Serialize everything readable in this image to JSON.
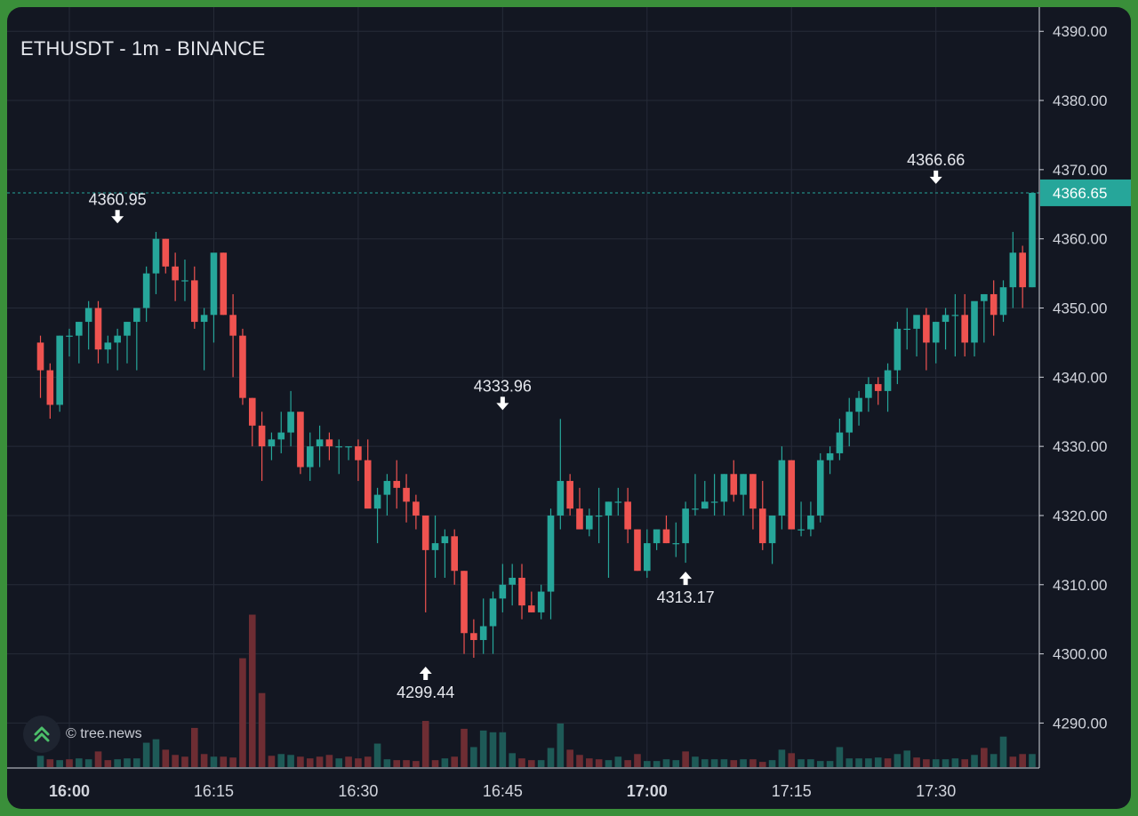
{
  "chart_data": {
    "type": "candlestick",
    "title": "ETHUSDT - 1m - BINANCE",
    "watermark": "© tree.news",
    "y_ticks": [
      "4390.00",
      "4380.00",
      "4370.00",
      "4360.00",
      "4350.00",
      "4340.00",
      "4330.00",
      "4320.00",
      "4310.00",
      "4300.00",
      "4290.00"
    ],
    "ylim": [
      4283.5,
      4393.5
    ],
    "x_ticks": [
      {
        "label": "16:00",
        "minute": 960,
        "bold": true
      },
      {
        "label": "16:15",
        "minute": 975,
        "bold": false
      },
      {
        "label": "16:30",
        "minute": 990,
        "bold": false
      },
      {
        "label": "16:45",
        "minute": 1005,
        "bold": false
      },
      {
        "label": "17:00",
        "minute": 1020,
        "bold": true
      },
      {
        "label": "17:15",
        "minute": 1035,
        "bold": false
      },
      {
        "label": "17:30",
        "minute": 1050,
        "bold": false
      }
    ],
    "current_price": "4366.65",
    "annotations": [
      {
        "label": "4360.95",
        "minute": 965,
        "price": 4360.95,
        "kind": "high"
      },
      {
        "label": "4299.44",
        "minute": 997,
        "price": 4299.44,
        "kind": "low"
      },
      {
        "label": "4333.96",
        "minute": 1005,
        "price": 4333.96,
        "kind": "high"
      },
      {
        "label": "4313.17",
        "minute": 1024,
        "price": 4313.17,
        "kind": "low"
      },
      {
        "label": "4366.66",
        "minute": 1050,
        "price": 4366.66,
        "kind": "high"
      }
    ],
    "grid": true,
    "colors": {
      "up": "#26a69a",
      "down": "#ef5350",
      "up_volume": "#1e5a57",
      "down_volume": "#6e2d33",
      "background": "#131722",
      "grid": "#262b38",
      "axis_text": "#d1d4dc",
      "price_line": "#26a69a"
    },
    "candles": [
      [
        957,
        4345,
        4346,
        4337,
        4341
      ],
      [
        958,
        4341,
        4342,
        4334,
        4336
      ],
      [
        959,
        4336,
        4346,
        4335,
        4346
      ],
      [
        960,
        4346,
        4347,
        4343,
        4346
      ],
      [
        961,
        4346,
        4348,
        4342,
        4348
      ],
      [
        962,
        4348,
        4351,
        4344,
        4350
      ],
      [
        963,
        4350,
        4351,
        4342,
        4344
      ],
      [
        964,
        4344,
        4346,
        4342,
        4345
      ],
      [
        965,
        4345,
        4347,
        4341,
        4346
      ],
      [
        966,
        4346,
        4348,
        4342,
        4348
      ],
      [
        967,
        4348,
        4350,
        4341,
        4350
      ],
      [
        968,
        4350,
        4356,
        4348,
        4355
      ],
      [
        969,
        4355,
        4361,
        4352,
        4360
      ],
      [
        970,
        4360,
        4360,
        4355,
        4356
      ],
      [
        971,
        4356,
        4358,
        4351,
        4354
      ],
      [
        972,
        4354,
        4357,
        4351,
        4354
      ],
      [
        973,
        4354,
        4356,
        4347,
        4348
      ],
      [
        974,
        4348,
        4350,
        4341,
        4349
      ],
      [
        975,
        4349,
        4357,
        4345,
        4358
      ],
      [
        976,
        4358,
        4358,
        4349,
        4349
      ],
      [
        977,
        4349,
        4352,
        4340,
        4346
      ],
      [
        978,
        4346,
        4347,
        4336,
        4337
      ],
      [
        979,
        4337,
        4337,
        4330,
        4333
      ],
      [
        980,
        4333,
        4335,
        4325,
        4330
      ],
      [
        981,
        4330,
        4332,
        4328,
        4331
      ],
      [
        982,
        4331,
        4335,
        4329,
        4332
      ],
      [
        983,
        4332,
        4338,
        4330,
        4335
      ],
      [
        984,
        4335,
        4335,
        4326,
        4327
      ],
      [
        985,
        4327,
        4332,
        4325,
        4330
      ],
      [
        986,
        4330,
        4333,
        4327,
        4331
      ],
      [
        987,
        4331,
        4332,
        4328,
        4330
      ],
      [
        988,
        4330,
        4331,
        4326,
        4330
      ],
      [
        989,
        4330,
        4330,
        4328,
        4330
      ],
      [
        990,
        4330,
        4331,
        4325,
        4328
      ],
      [
        991,
        4328,
        4331,
        4322,
        4321
      ],
      [
        992,
        4321,
        4324,
        4316,
        4323
      ],
      [
        993,
        4323,
        4326,
        4320,
        4325
      ],
      [
        994,
        4325,
        4328,
        4321,
        4324
      ],
      [
        995,
        4324,
        4326,
        4319,
        4322
      ],
      [
        996,
        4322,
        4323,
        4318,
        4320
      ],
      [
        997,
        4320,
        4320,
        4306,
        4315
      ],
      [
        998,
        4315,
        4320,
        4311,
        4316
      ],
      [
        999,
        4316,
        4318,
        4311,
        4317
      ],
      [
        1000,
        4317,
        4318,
        4310,
        4312
      ],
      [
        1001,
        4312,
        4312,
        4300,
        4303
      ],
      [
        1002,
        4303,
        4305,
        4299.44,
        4302
      ],
      [
        1003,
        4302,
        4308,
        4300,
        4304
      ],
      [
        1004,
        4304,
        4309,
        4300,
        4308
      ],
      [
        1005,
        4308,
        4313,
        4306,
        4310
      ],
      [
        1006,
        4310,
        4313,
        4307,
        4311
      ],
      [
        1007,
        4311,
        4313,
        4305,
        4307
      ],
      [
        1008,
        4307,
        4309,
        4306,
        4306
      ],
      [
        1009,
        4306,
        4310,
        4305,
        4309
      ],
      [
        1010,
        4309,
        4321,
        4305,
        4320
      ],
      [
        1011,
        4320,
        4333.96,
        4318,
        4325
      ],
      [
        1012,
        4325,
        4326,
        4320,
        4321
      ],
      [
        1013,
        4321,
        4324,
        4318,
        4318
      ],
      [
        1014,
        4318,
        4321,
        4317,
        4320
      ],
      [
        1015,
        4320,
        4324,
        4316,
        4320
      ],
      [
        1016,
        4320,
        4322,
        4311,
        4322
      ],
      [
        1017,
        4322,
        4324,
        4320,
        4322
      ],
      [
        1018,
        4322,
        4324,
        4316,
        4318
      ],
      [
        1019,
        4318,
        4318,
        4312,
        4312
      ],
      [
        1020,
        4312,
        4318,
        4311,
        4316
      ],
      [
        1021,
        4316,
        4318,
        4315,
        4318
      ],
      [
        1022,
        4318,
        4320,
        4316,
        4316
      ],
      [
        1023,
        4316,
        4319,
        4314,
        4316
      ],
      [
        1024,
        4316,
        4322,
        4313.17,
        4321
      ],
      [
        1025,
        4321,
        4326,
        4320,
        4321
      ],
      [
        1026,
        4321,
        4325,
        4321,
        4322
      ],
      [
        1027,
        4322,
        4326,
        4320,
        4322
      ],
      [
        1028,
        4322,
        4326,
        4320,
        4326
      ],
      [
        1029,
        4326,
        4328,
        4322,
        4323
      ],
      [
        1030,
        4323,
        4326,
        4320,
        4326
      ],
      [
        1031,
        4326,
        4326,
        4318,
        4321
      ],
      [
        1032,
        4321,
        4325,
        4315,
        4316
      ],
      [
        1033,
        4316,
        4320,
        4313,
        4320
      ],
      [
        1034,
        4320,
        4330,
        4318,
        4328
      ],
      [
        1035,
        4328,
        4328,
        4318,
        4318
      ],
      [
        1036,
        4318,
        4322,
        4317,
        4318
      ],
      [
        1037,
        4318,
        4322,
        4317,
        4320
      ],
      [
        1038,
        4320,
        4329,
        4319,
        4328
      ],
      [
        1039,
        4328,
        4330,
        4326,
        4329
      ],
      [
        1040,
        4329,
        4334,
        4328,
        4332
      ],
      [
        1041,
        4332,
        4337,
        4330,
        4335
      ],
      [
        1042,
        4335,
        4338,
        4333,
        4337
      ],
      [
        1043,
        4337,
        4340,
        4335,
        4339
      ],
      [
        1044,
        4339,
        4340,
        4336,
        4338
      ],
      [
        1045,
        4338,
        4342,
        4335,
        4341
      ],
      [
        1046,
        4341,
        4348,
        4339,
        4347
      ],
      [
        1047,
        4347,
        4350,
        4344,
        4347
      ],
      [
        1048,
        4347,
        4348,
        4343,
        4349
      ],
      [
        1049,
        4349,
        4350,
        4341,
        4345
      ],
      [
        1050,
        4345,
        4348,
        4342,
        4348
      ],
      [
        1051,
        4348,
        4350,
        4344,
        4349
      ],
      [
        1052,
        4349,
        4352,
        4343,
        4349
      ],
      [
        1053,
        4349,
        4352,
        4343,
        4345
      ],
      [
        1054,
        4345,
        4350,
        4343,
        4351
      ],
      [
        1055,
        4351,
        4352,
        4345,
        4352
      ],
      [
        1056,
        4352,
        4354,
        4346,
        4349
      ],
      [
        1057,
        4349,
        4354,
        4348,
        4353
      ],
      [
        1058,
        4353,
        4361,
        4350,
        4358
      ],
      [
        1059,
        4358,
        4359,
        4350,
        4353
      ],
      [
        1060,
        4353,
        4366.66,
        4353,
        4366.65
      ]
    ],
    "volumes": [
      [
        957,
        13,
        0
      ],
      [
        958,
        9,
        1
      ],
      [
        959,
        8,
        0
      ],
      [
        960,
        9,
        1
      ],
      [
        961,
        10,
        0
      ],
      [
        962,
        9,
        0
      ],
      [
        963,
        18,
        1
      ],
      [
        964,
        8,
        1
      ],
      [
        965,
        9,
        0
      ],
      [
        966,
        10,
        0
      ],
      [
        967,
        10,
        0
      ],
      [
        968,
        28,
        0
      ],
      [
        969,
        32,
        0
      ],
      [
        970,
        20,
        1
      ],
      [
        971,
        14,
        1
      ],
      [
        972,
        12,
        1
      ],
      [
        973,
        45,
        1
      ],
      [
        974,
        15,
        1
      ],
      [
        975,
        12,
        0
      ],
      [
        976,
        12,
        1
      ],
      [
        977,
        11,
        1
      ],
      [
        978,
        125,
        1
      ],
      [
        979,
        175,
        1
      ],
      [
        980,
        85,
        1
      ],
      [
        981,
        13,
        1
      ],
      [
        982,
        15,
        0
      ],
      [
        983,
        14,
        0
      ],
      [
        984,
        12,
        1
      ],
      [
        985,
        10,
        1
      ],
      [
        986,
        12,
        1
      ],
      [
        987,
        14,
        1
      ],
      [
        988,
        10,
        0
      ],
      [
        989,
        12,
        1
      ],
      [
        990,
        10,
        1
      ],
      [
        991,
        12,
        1
      ],
      [
        992,
        27,
        0
      ],
      [
        993,
        9,
        0
      ],
      [
        994,
        8,
        1
      ],
      [
        995,
        8,
        1
      ],
      [
        996,
        7,
        1
      ],
      [
        997,
        53,
        1
      ],
      [
        998,
        8,
        1
      ],
      [
        999,
        10,
        0
      ],
      [
        1000,
        12,
        1
      ],
      [
        1001,
        44,
        1
      ],
      [
        1002,
        23,
        0
      ],
      [
        1003,
        42,
        0
      ],
      [
        1004,
        40,
        0
      ],
      [
        1005,
        40,
        0
      ],
      [
        1006,
        16,
        0
      ],
      [
        1007,
        10,
        1
      ],
      [
        1008,
        8,
        1
      ],
      [
        1009,
        8,
        0
      ],
      [
        1010,
        22,
        0
      ],
      [
        1011,
        50,
        0
      ],
      [
        1012,
        20,
        1
      ],
      [
        1013,
        14,
        1
      ],
      [
        1014,
        10,
        1
      ],
      [
        1015,
        9,
        1
      ],
      [
        1016,
        8,
        0
      ],
      [
        1017,
        12,
        0
      ],
      [
        1018,
        8,
        1
      ],
      [
        1019,
        15,
        1
      ],
      [
        1020,
        7,
        0
      ],
      [
        1021,
        7,
        0
      ],
      [
        1022,
        9,
        0
      ],
      [
        1023,
        8,
        0
      ],
      [
        1024,
        18,
        1
      ],
      [
        1025,
        12,
        0
      ],
      [
        1026,
        9,
        0
      ],
      [
        1027,
        9,
        0
      ],
      [
        1028,
        9,
        0
      ],
      [
        1029,
        8,
        1
      ],
      [
        1030,
        9,
        0
      ],
      [
        1031,
        9,
        1
      ],
      [
        1032,
        6,
        1
      ],
      [
        1033,
        8,
        0
      ],
      [
        1034,
        20,
        0
      ],
      [
        1035,
        16,
        1
      ],
      [
        1036,
        9,
        0
      ],
      [
        1037,
        9,
        0
      ],
      [
        1038,
        7,
        0
      ],
      [
        1039,
        7,
        0
      ],
      [
        1040,
        23,
        0
      ],
      [
        1041,
        10,
        0
      ],
      [
        1042,
        10,
        0
      ],
      [
        1043,
        10,
        0
      ],
      [
        1044,
        11,
        0
      ],
      [
        1045,
        10,
        1
      ],
      [
        1046,
        15,
        0
      ],
      [
        1047,
        19,
        0
      ],
      [
        1048,
        11,
        1
      ],
      [
        1049,
        9,
        1
      ],
      [
        1050,
        9,
        0
      ],
      [
        1051,
        9,
        0
      ],
      [
        1052,
        10,
        0
      ],
      [
        1053,
        9,
        1
      ],
      [
        1054,
        14,
        0
      ],
      [
        1055,
        22,
        1
      ],
      [
        1056,
        15,
        0
      ],
      [
        1057,
        35,
        0
      ],
      [
        1058,
        12,
        1
      ],
      [
        1059,
        15,
        1
      ],
      [
        1060,
        15,
        0
      ]
    ]
  }
}
